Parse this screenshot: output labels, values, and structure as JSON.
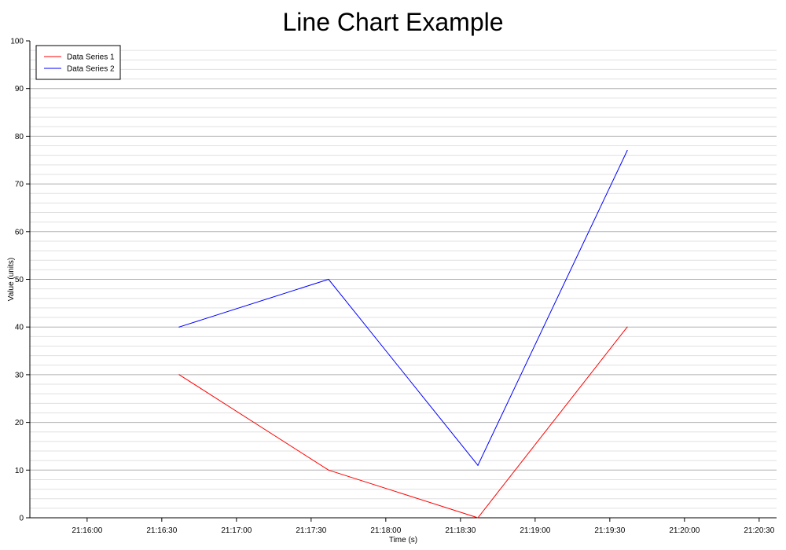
{
  "chart_data": {
    "type": "line",
    "title": "Line Chart Example",
    "xlabel": "Time (s)",
    "ylabel": "Value (units)",
    "ylim": [
      0,
      100
    ],
    "xlim": [
      "21:15:37",
      "21:20:37"
    ],
    "x_ticks": [
      "21:16:00",
      "21:16:30",
      "21:17:00",
      "21:17:30",
      "21:18:00",
      "21:18:30",
      "21:19:00",
      "21:19:30",
      "21:20:00",
      "21:20:30"
    ],
    "y_ticks": [
      "0",
      "10",
      "20",
      "30",
      "40",
      "50",
      "60",
      "70",
      "80",
      "90",
      "100"
    ],
    "y_minor_step": 2,
    "grid": true,
    "legend_position": "top-left",
    "x": [
      "21:16:37",
      "21:17:37",
      "21:18:37",
      "21:19:37"
    ],
    "series": [
      {
        "name": "Data Series 1",
        "color": "#ff0000",
        "values": [
          30,
          10,
          0,
          40
        ]
      },
      {
        "name": "Data Series 2",
        "color": "#0000ff",
        "values": [
          40,
          50,
          11,
          77
        ]
      }
    ]
  }
}
